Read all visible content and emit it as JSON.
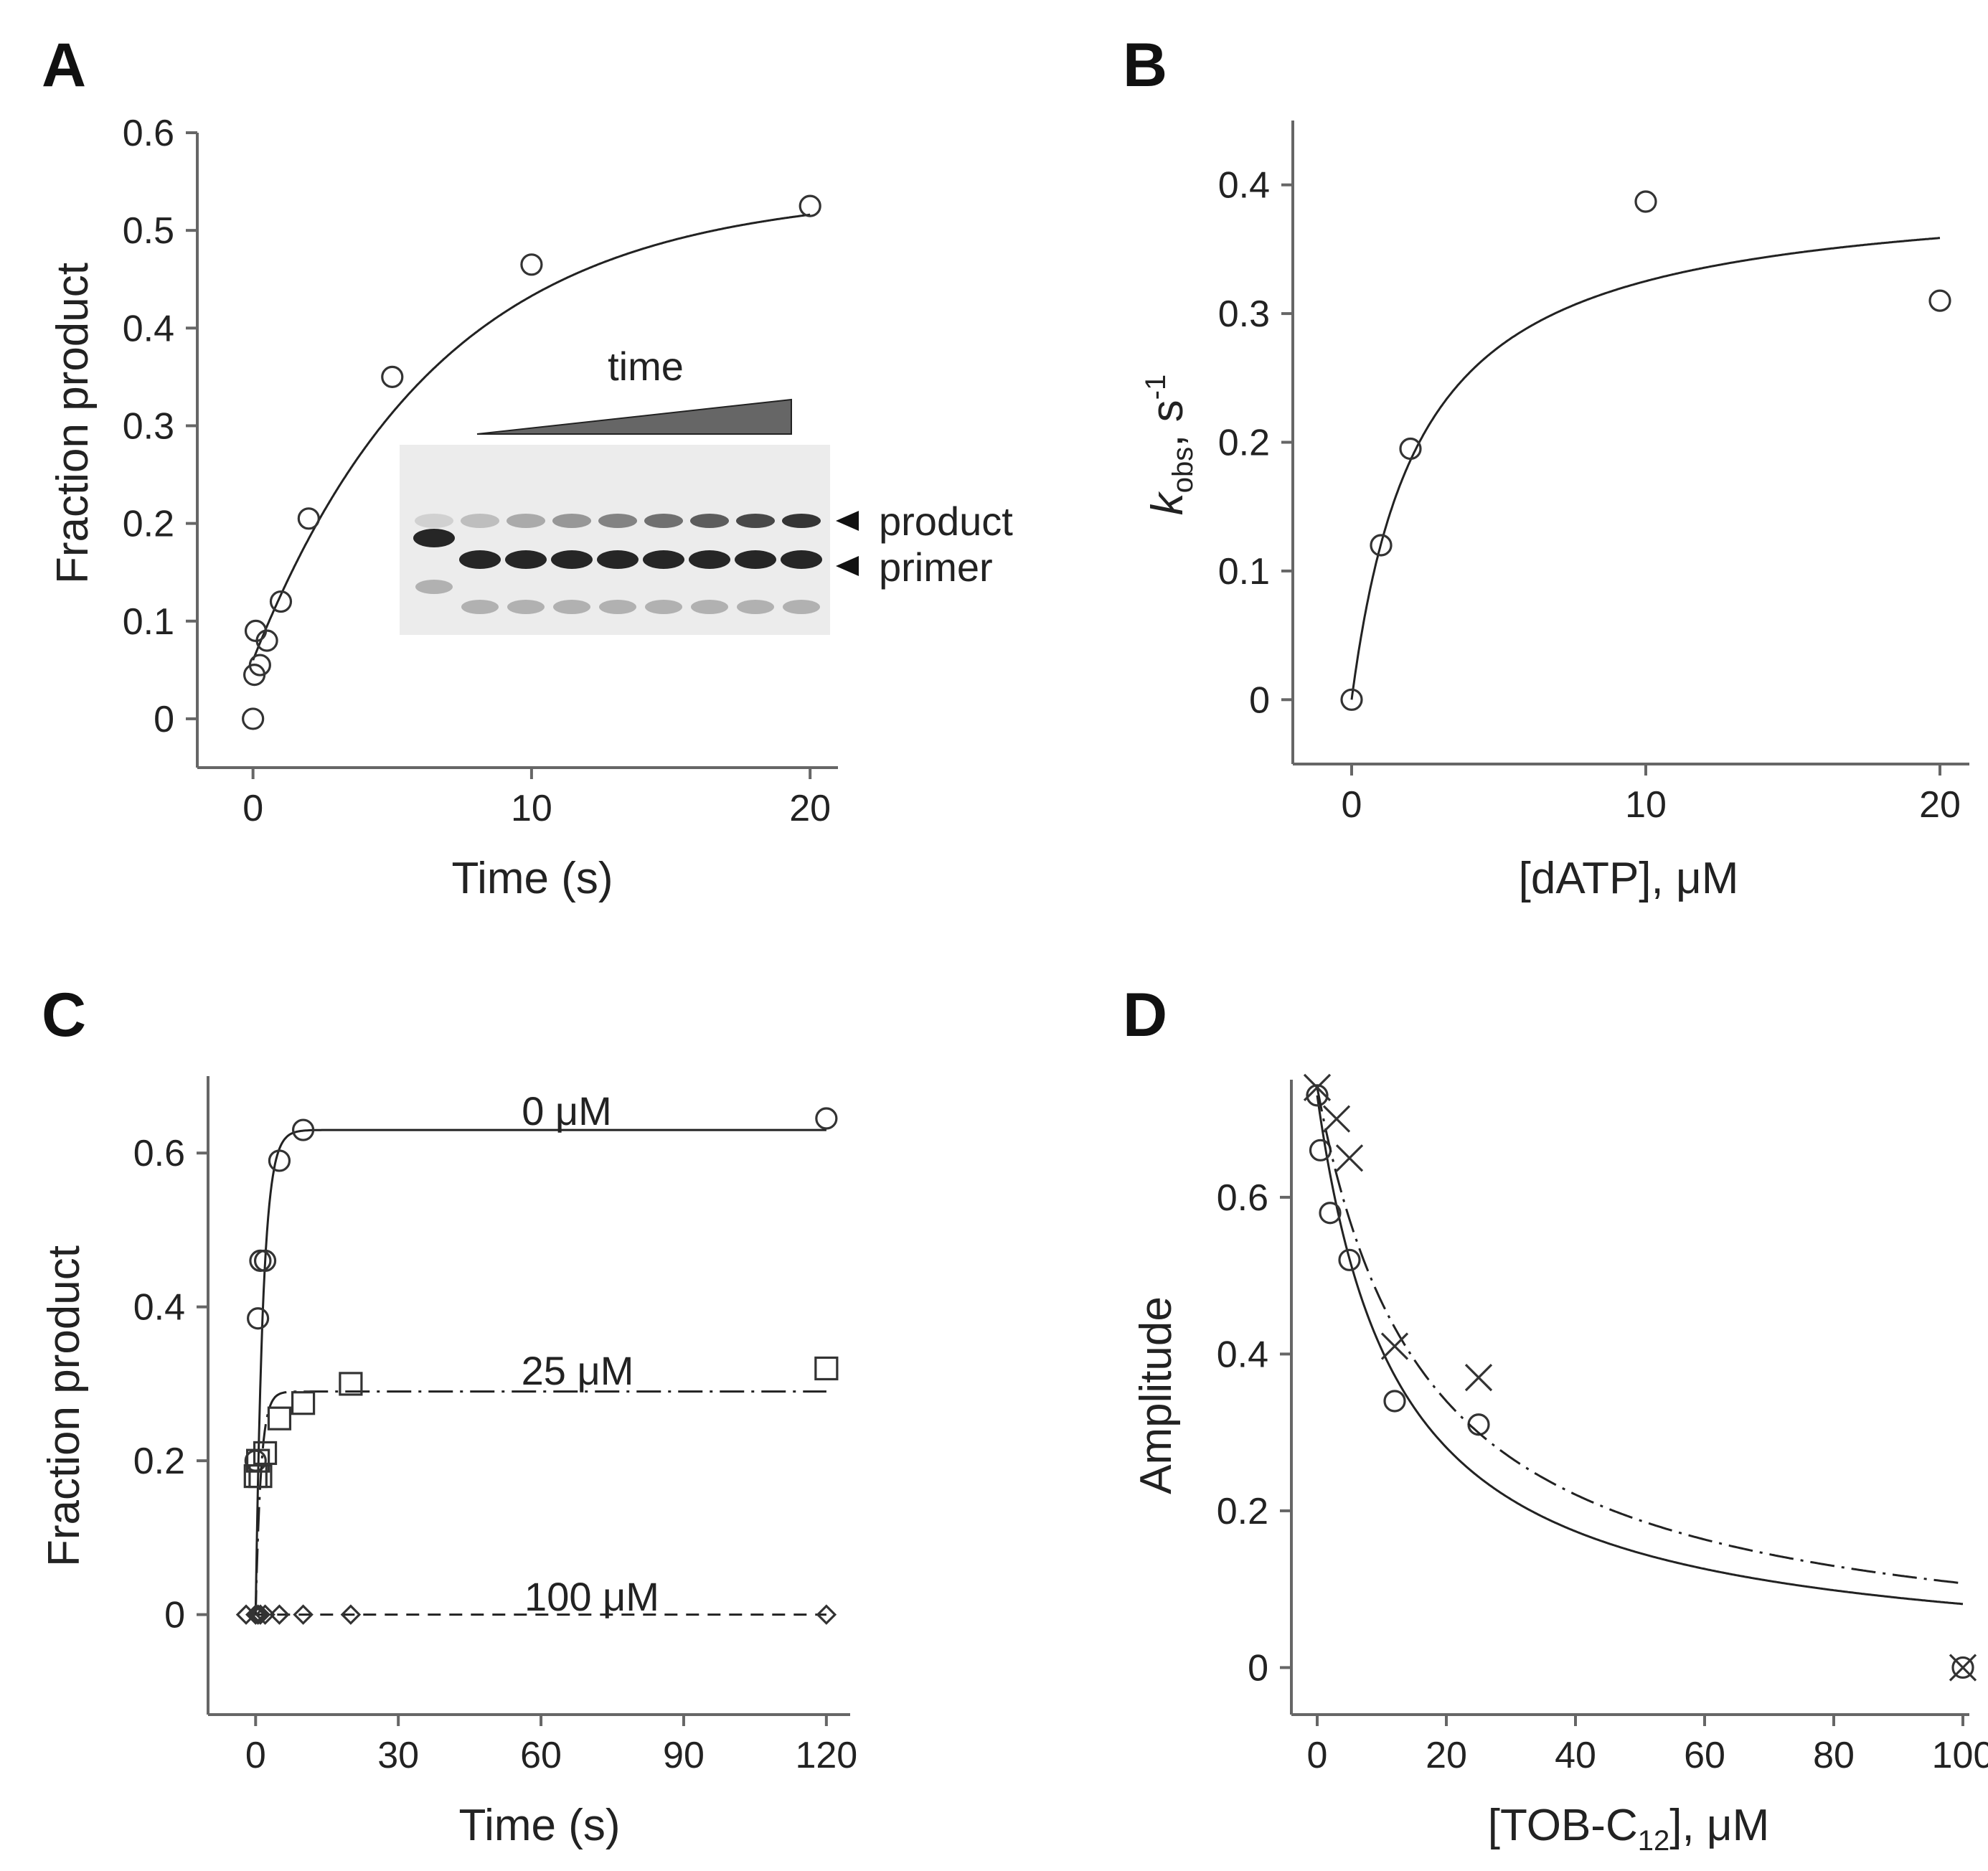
{
  "colors": {
    "ink": "#222222",
    "axis": "#666666",
    "gel_bg": "#ececec",
    "wedge": "#666666"
  },
  "chart_data": [
    {
      "panel": "A",
      "type": "scatter",
      "xlabel": "Time (s)",
      "ylabel": "Fraction product",
      "xlim": [
        -2,
        21
      ],
      "ylim": [
        -0.05,
        0.6
      ],
      "xticks": [
        0,
        10,
        20
      ],
      "xtick_labels": [
        "0",
        "10",
        "20"
      ],
      "yticks": [
        0,
        0.1,
        0.2,
        0.3,
        0.4,
        0.5,
        0.6
      ],
      "ytick_labels": [
        "0",
        "0.1",
        "0.2",
        "0.3",
        "0.4",
        "0.5",
        "0.6"
      ],
      "series": [
        {
          "name": "data",
          "marker": "circle",
          "x": [
            0,
            0.05,
            0.1,
            0.25,
            0.5,
            1,
            2,
            5,
            10,
            20
          ],
          "y": [
            0,
            0.045,
            0.09,
            0.055,
            0.08,
            0.12,
            0.205,
            0.35,
            0.465,
            0.525
          ]
        }
      ],
      "fit": {
        "model": "burst",
        "a0": 0.06,
        "a1": 0.48,
        "k": 0.15,
        "xmin": 0,
        "xmax": 20
      },
      "inset": {
        "time_label": "time",
        "band_labels": [
          "product",
          "primer"
        ],
        "lanes": 9
      }
    },
    {
      "panel": "B",
      "type": "scatter",
      "xlabel": "[dATP], μM",
      "ylabel_main": "k",
      "ylabel_sub": "obs",
      "ylabel_tail": ", s",
      "ylabel_sup": "-1",
      "xlim": [
        -2,
        21
      ],
      "ylim": [
        -0.05,
        0.45
      ],
      "xticks": [
        0,
        10,
        20
      ],
      "xtick_labels": [
        "0",
        "10",
        "20"
      ],
      "yticks": [
        0,
        0.1,
        0.2,
        0.3,
        0.4
      ],
      "ytick_labels": [
        "0",
        "0.1",
        "0.2",
        "0.3",
        "0.4"
      ],
      "series": [
        {
          "name": "data",
          "marker": "circle",
          "x": [
            0,
            1,
            2,
            10,
            20
          ],
          "y": [
            0,
            0.12,
            0.195,
            0.387,
            0.31
          ]
        }
      ],
      "fit": {
        "model": "hyperbola",
        "vmax": 0.4,
        "kd": 2.3,
        "xmin": 0,
        "xmax": 20
      }
    },
    {
      "panel": "C",
      "type": "scatter",
      "xlabel": "Time (s)",
      "ylabel": "Fraction product",
      "xlim": [
        -10,
        125
      ],
      "ylim": [
        -0.13,
        0.7
      ],
      "xticks": [
        0,
        30,
        60,
        90,
        120
      ],
      "xtick_labels": [
        "0",
        "30",
        "60",
        "90",
        "120"
      ],
      "yticks": [
        0,
        0.2,
        0.4,
        0.6
      ],
      "ytick_labels": [
        "0",
        "0.2",
        "0.4",
        "0.6"
      ],
      "series": [
        {
          "name": "0 μM",
          "marker": "circle",
          "line": "solid",
          "fit": {
            "amp": 0.63,
            "k": 0.65
          },
          "x": [
            0,
            0.5,
            1,
            2,
            5,
            10,
            120
          ],
          "y": [
            0.2,
            0.385,
            0.46,
            0.46,
            0.59,
            0.63,
            0.645
          ]
        },
        {
          "name": "25 μM",
          "marker": "square",
          "line": "dashdot",
          "fit": {
            "amp": 0.29,
            "k": 0.9
          },
          "x": [
            0,
            0.5,
            1,
            2,
            5,
            10,
            20,
            120
          ],
          "y": [
            0.18,
            0.2,
            0.18,
            0.21,
            0.255,
            0.275,
            0.3,
            0.32
          ]
        },
        {
          "name": "100 μM",
          "marker": "diamond",
          "line": "dashed",
          "fit": {
            "amp": 0.0,
            "k": 1
          },
          "x": [
            -2,
            0,
            0.5,
            1,
            2,
            5,
            10,
            20,
            120
          ],
          "y": [
            0,
            0,
            0,
            0,
            0,
            0,
            0,
            0,
            0
          ]
        }
      ],
      "annotations": [
        "0 μM",
        "25 μM",
        "100 μM"
      ]
    },
    {
      "panel": "D",
      "type": "scatter",
      "xlabel_main": "[TOB-C",
      "xlabel_sub": "12",
      "xlabel_tail": "], μM",
      "ylabel": "Amplitude",
      "xlim": [
        -4,
        101
      ],
      "ylim": [
        -0.06,
        0.75
      ],
      "xticks": [
        0,
        20,
        40,
        60,
        80,
        100
      ],
      "xtick_labels": [
        "0",
        "20",
        "40",
        "60",
        "80",
        "100"
      ],
      "yticks": [
        0,
        0.2,
        0.4,
        0.6
      ],
      "ytick_labels": [
        "0",
        "0.2",
        "0.4",
        "0.6"
      ],
      "series": [
        {
          "name": "circles",
          "marker": "circle",
          "line": "solid",
          "fit": {
            "a0": 0.73,
            "ic50": 12.5
          },
          "x": [
            0,
            0.5,
            2,
            5,
            12,
            25,
            100
          ],
          "y": [
            0.73,
            0.66,
            0.58,
            0.52,
            0.34,
            0.31,
            0
          ]
        },
        {
          "name": "crosses",
          "marker": "x",
          "line": "dashdot",
          "fit": {
            "a0": 0.74,
            "ic50": 17
          },
          "x": [
            0,
            3,
            5,
            12,
            25,
            100
          ],
          "y": [
            0.74,
            0.7,
            0.65,
            0.41,
            0.37,
            0
          ]
        }
      ]
    }
  ]
}
